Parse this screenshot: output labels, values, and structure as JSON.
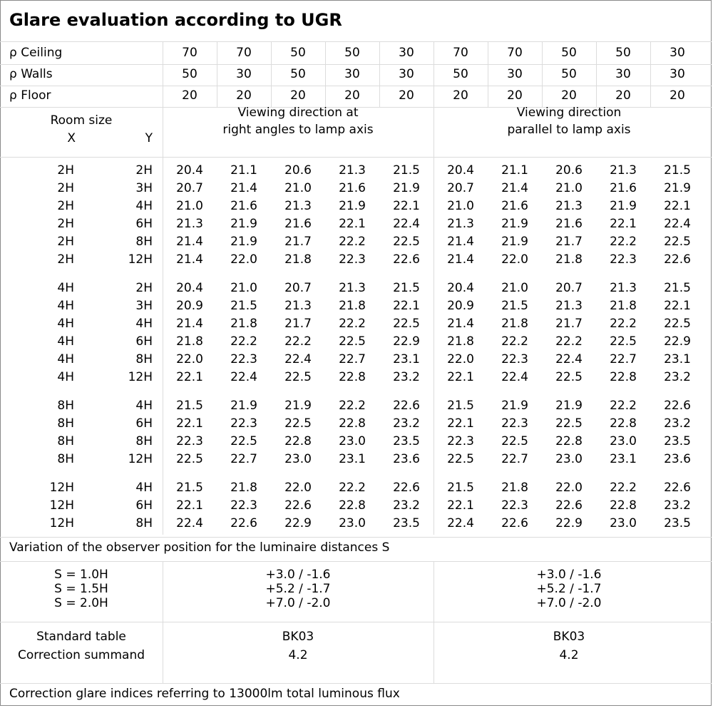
{
  "title": "Glare evaluation according to UGR",
  "reflectances": [
    {
      "label": "ρ Ceiling",
      "values": [
        "70",
        "70",
        "50",
        "50",
        "30",
        "70",
        "70",
        "50",
        "50",
        "30"
      ]
    },
    {
      "label": "ρ Walls",
      "values": [
        "50",
        "30",
        "50",
        "30",
        "30",
        "50",
        "30",
        "50",
        "30",
        "30"
      ]
    },
    {
      "label": "ρ Floor",
      "values": [
        "20",
        "20",
        "20",
        "20",
        "20",
        "20",
        "20",
        "20",
        "20",
        "20"
      ]
    }
  ],
  "room_size": {
    "label": "Room size",
    "x_label": "X",
    "y_label": "Y"
  },
  "viewing_headers": [
    [
      "Viewing direction at",
      "right angles to lamp axis"
    ],
    [
      "Viewing direction",
      "parallel to lamp axis"
    ]
  ],
  "groups": [
    {
      "rows": [
        {
          "x": "2H",
          "y": "2H",
          "values": [
            "20.4",
            "21.1",
            "20.6",
            "21.3",
            "21.5",
            "20.4",
            "21.1",
            "20.6",
            "21.3",
            "21.5"
          ]
        },
        {
          "x": "2H",
          "y": "3H",
          "values": [
            "20.7",
            "21.4",
            "21.0",
            "21.6",
            "21.9",
            "20.7",
            "21.4",
            "21.0",
            "21.6",
            "21.9"
          ]
        },
        {
          "x": "2H",
          "y": "4H",
          "values": [
            "21.0",
            "21.6",
            "21.3",
            "21.9",
            "22.1",
            "21.0",
            "21.6",
            "21.3",
            "21.9",
            "22.1"
          ]
        },
        {
          "x": "2H",
          "y": "6H",
          "values": [
            "21.3",
            "21.9",
            "21.6",
            "22.1",
            "22.4",
            "21.3",
            "21.9",
            "21.6",
            "22.1",
            "22.4"
          ]
        },
        {
          "x": "2H",
          "y": "8H",
          "values": [
            "21.4",
            "21.9",
            "21.7",
            "22.2",
            "22.5",
            "21.4",
            "21.9",
            "21.7",
            "22.2",
            "22.5"
          ]
        },
        {
          "x": "2H",
          "y": "12H",
          "values": [
            "21.4",
            "22.0",
            "21.8",
            "22.3",
            "22.6",
            "21.4",
            "22.0",
            "21.8",
            "22.3",
            "22.6"
          ]
        }
      ]
    },
    {
      "rows": [
        {
          "x": "4H",
          "y": "2H",
          "values": [
            "20.4",
            "21.0",
            "20.7",
            "21.3",
            "21.5",
            "20.4",
            "21.0",
            "20.7",
            "21.3",
            "21.5"
          ]
        },
        {
          "x": "4H",
          "y": "3H",
          "values": [
            "20.9",
            "21.5",
            "21.3",
            "21.8",
            "22.1",
            "20.9",
            "21.5",
            "21.3",
            "21.8",
            "22.1"
          ]
        },
        {
          "x": "4H",
          "y": "4H",
          "values": [
            "21.4",
            "21.8",
            "21.7",
            "22.2",
            "22.5",
            "21.4",
            "21.8",
            "21.7",
            "22.2",
            "22.5"
          ]
        },
        {
          "x": "4H",
          "y": "6H",
          "values": [
            "21.8",
            "22.2",
            "22.2",
            "22.5",
            "22.9",
            "21.8",
            "22.2",
            "22.2",
            "22.5",
            "22.9"
          ]
        },
        {
          "x": "4H",
          "y": "8H",
          "values": [
            "22.0",
            "22.3",
            "22.4",
            "22.7",
            "23.1",
            "22.0",
            "22.3",
            "22.4",
            "22.7",
            "23.1"
          ]
        },
        {
          "x": "4H",
          "y": "12H",
          "values": [
            "22.1",
            "22.4",
            "22.5",
            "22.8",
            "23.2",
            "22.1",
            "22.4",
            "22.5",
            "22.8",
            "23.2"
          ]
        }
      ]
    },
    {
      "rows": [
        {
          "x": "8H",
          "y": "4H",
          "values": [
            "21.5",
            "21.9",
            "21.9",
            "22.2",
            "22.6",
            "21.5",
            "21.9",
            "21.9",
            "22.2",
            "22.6"
          ]
        },
        {
          "x": "8H",
          "y": "6H",
          "values": [
            "22.1",
            "22.3",
            "22.5",
            "22.8",
            "23.2",
            "22.1",
            "22.3",
            "22.5",
            "22.8",
            "23.2"
          ]
        },
        {
          "x": "8H",
          "y": "8H",
          "values": [
            "22.3",
            "22.5",
            "22.8",
            "23.0",
            "23.5",
            "22.3",
            "22.5",
            "22.8",
            "23.0",
            "23.5"
          ]
        },
        {
          "x": "8H",
          "y": "12H",
          "values": [
            "22.5",
            "22.7",
            "23.0",
            "23.1",
            "23.6",
            "22.5",
            "22.7",
            "23.0",
            "23.1",
            "23.6"
          ]
        }
      ]
    },
    {
      "rows": [
        {
          "x": "12H",
          "y": "4H",
          "values": [
            "21.5",
            "21.8",
            "22.0",
            "22.2",
            "22.6",
            "21.5",
            "21.8",
            "22.0",
            "22.2",
            "22.6"
          ]
        },
        {
          "x": "12H",
          "y": "6H",
          "values": [
            "22.1",
            "22.3",
            "22.6",
            "22.8",
            "23.2",
            "22.1",
            "22.3",
            "22.6",
            "22.8",
            "23.2"
          ]
        },
        {
          "x": "12H",
          "y": "8H",
          "values": [
            "22.4",
            "22.6",
            "22.9",
            "23.0",
            "23.5",
            "22.4",
            "22.6",
            "22.9",
            "23.0",
            "23.5"
          ]
        }
      ]
    }
  ],
  "variation_label": "Variation of the observer position for the luminaire distances S",
  "variation": [
    {
      "s": "S = 1.0H",
      "right_angles": "+3.0 / -1.6",
      "parallel": "+3.0 / -1.6"
    },
    {
      "s": "S = 1.5H",
      "right_angles": "+5.2 / -1.7",
      "parallel": "+5.2 / -1.7"
    },
    {
      "s": "S = 2.0H",
      "right_angles": "+7.0 / -2.0",
      "parallel": "+7.0 / -2.0"
    }
  ],
  "standard_table": {
    "label": "Standard table",
    "right_angles": "BK03",
    "parallel": "BK03"
  },
  "correction_summand": {
    "label": "Correction summand",
    "right_angles": "4.2",
    "parallel": "4.2"
  },
  "footer": "Correction glare indices referring to 13000lm total luminous flux"
}
